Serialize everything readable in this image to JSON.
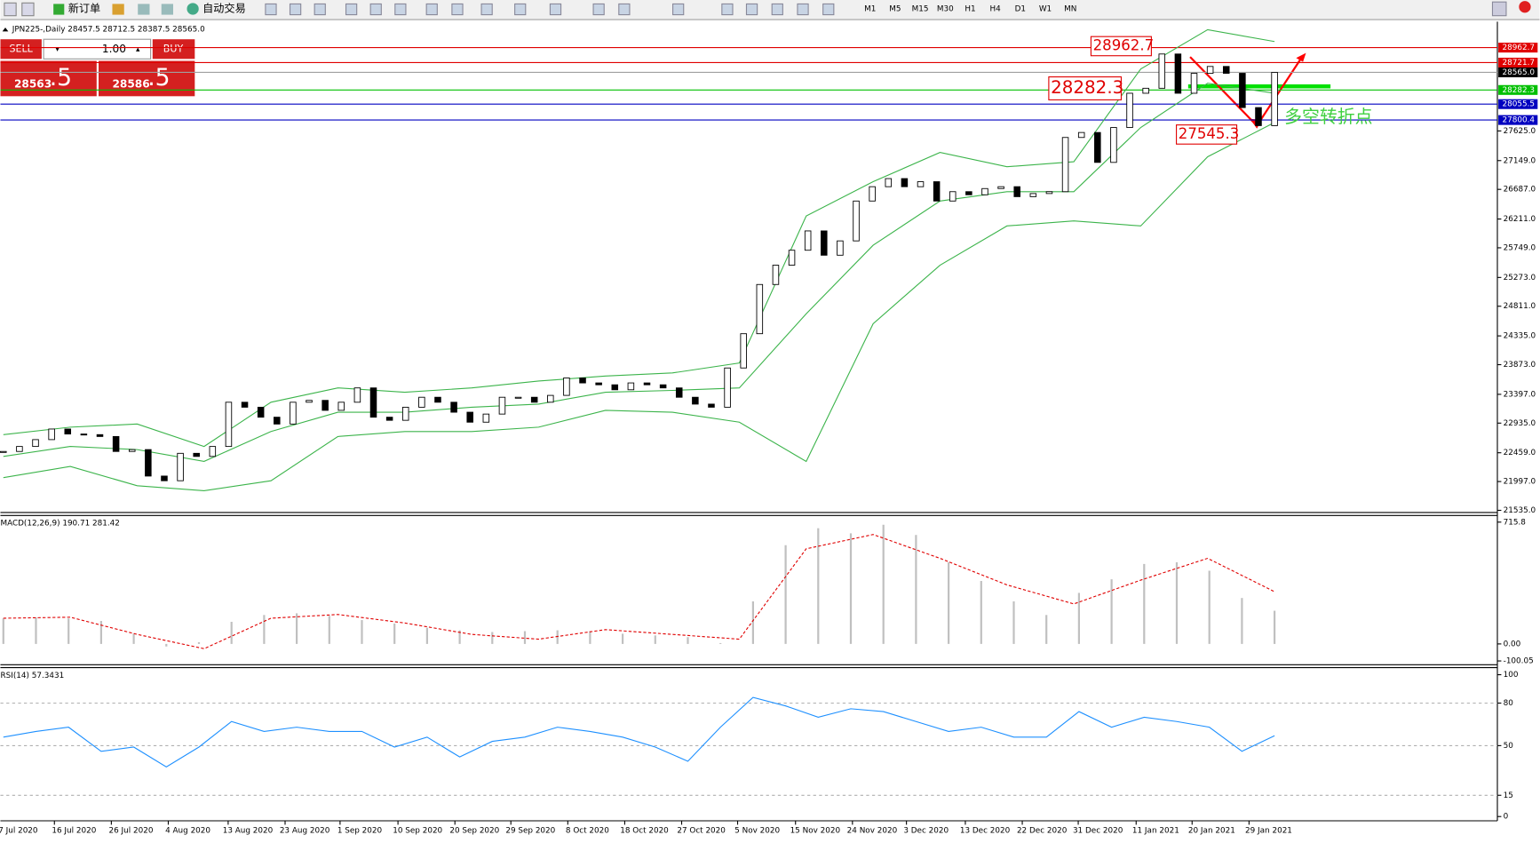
{
  "toolbar": {
    "buttons": [
      "新订单",
      "自动交易"
    ],
    "timeframes": [
      "M1",
      "M5",
      "M15",
      "M30",
      "H1",
      "H4",
      "D1",
      "W1",
      "MN"
    ]
  },
  "header": "JPN225-,Daily  28457.5 28712.5 28387.5 28565.0",
  "trade_panel": {
    "sell": "SELL",
    "buy": "BUY",
    "lot": "1.00",
    "bid": "28563",
    "bid_frac": ".5",
    "ask": "28586",
    "ask_frac": ".5"
  },
  "price_chart": {
    "ylim": [
      21500,
      29380
    ],
    "yticks": [
      {
        "value": 27625,
        "label": "27625.0"
      },
      {
        "value": 27149,
        "label": "27149.0"
      },
      {
        "value": 26687,
        "label": "26687.0"
      },
      {
        "value": 26211,
        "label": "26211.0"
      },
      {
        "value": 25749,
        "label": "25749.0"
      },
      {
        "value": 25273,
        "label": "25273.0"
      },
      {
        "value": 24811,
        "label": "24811.0"
      },
      {
        "value": 24335,
        "label": "24335.0"
      },
      {
        "value": 23873,
        "label": "23873.0"
      },
      {
        "value": 23397,
        "label": "23397.0"
      },
      {
        "value": 22935,
        "label": "22935.0"
      },
      {
        "value": 22459,
        "label": "22459.0"
      },
      {
        "value": 21997,
        "label": "21997.0"
      },
      {
        "value": 21535,
        "label": "21535.0"
      }
    ],
    "levels": [
      {
        "price": 28962.7,
        "color": "#e00000"
      },
      {
        "price": 28721.7,
        "color": "#e00000"
      },
      {
        "price": {
          "value": 28565,
          "label": "28565.0"
        },
        "color": "#000000"
      },
      {
        "price": 28282.3,
        "color": "#00c000"
      },
      {
        "price": 28055.5,
        "color": "#0000c0"
      },
      {
        "price": 27800.4,
        "color": "#0000c0"
      }
    ],
    "closes": [
      22480,
      22560,
      22670,
      22840,
      22760,
      22750,
      22720,
      22480,
      22510,
      22085,
      22010,
      22450,
      22400,
      22560,
      23270,
      23190,
      23030,
      22920,
      23270,
      23300,
      23140,
      23270,
      23500,
      23030,
      22980,
      23190,
      23350,
      23270,
      23110,
      22950,
      23080,
      23350,
      23350,
      23270,
      23380,
      23660,
      23580,
      23550,
      23470,
      23580,
      23550,
      23500,
      23350,
      23240,
      23190,
      23820,
      24370,
      25160,
      25470,
      25710,
      26020,
      25630,
      25860,
      26500,
      26730,
      26860,
      26730,
      26810,
      26500,
      26650,
      26600,
      26700,
      26730,
      26570,
      26620,
      26650,
      27520,
      27600,
      27120,
      27680,
      28230,
      28310,
      28860,
      28230,
      28550,
      28660,
      28550,
      28000,
      27710,
      28565
    ],
    "bands": {
      "upper": [
        22750,
        22870,
        22920,
        22560,
        23270,
        23500,
        23430,
        23500,
        23610,
        23690,
        23740,
        23900,
        26260,
        26810,
        27280,
        27050,
        27130,
        28620,
        29250,
        29060
      ],
      "middle": [
        22400,
        22560,
        22510,
        22320,
        22800,
        23110,
        23110,
        23190,
        23240,
        23430,
        23460,
        23500,
        24690,
        25790,
        26500,
        26650,
        26650,
        27680,
        28390,
        28230
      ],
      "lower": [
        22060,
        22240,
        21930,
        21850,
        22010,
        22720,
        22800,
        22800,
        22870,
        23140,
        23110,
        22950,
        22320,
        24530,
        25470,
        26100,
        26180,
        26100,
        27210,
        27760
      ]
    },
    "annotations": [
      "28962.7",
      "28282.3",
      "27545.3",
      "多空转折点"
    ]
  },
  "macd": {
    "title": "MACD(12,26,9) 190.71 281.42",
    "ylim": [
      -122,
      755
    ],
    "yticks": [
      715.8,
      {
        "value": 0,
        "label": "0.00"
      },
      -100.05
    ],
    "histogram": [
      150,
      155,
      150,
      135,
      60,
      -15,
      10,
      130,
      170,
      180,
      165,
      140,
      120,
      95,
      80,
      70,
      75,
      80,
      75,
      60,
      50,
      40,
      5,
      250,
      580,
      680,
      650,
      700,
      640,
      480,
      370,
      250,
      170,
      300,
      380,
      470,
      480,
      430,
      270,
      195
    ],
    "signal": [
      151,
      157,
      56,
      -28,
      151,
      173,
      123,
      56,
      28,
      84,
      56,
      28,
      559,
      643,
      503,
      347,
      235,
      375,
      503,
      307
    ]
  },
  "rsi": {
    "title": "RSI(14) 57.3431",
    "ylim": [
      -3,
      105
    ],
    "yticks": [
      100,
      80,
      50,
      15,
      0
    ],
    "levels": [
      80,
      50,
      15
    ],
    "values": [
      56,
      60,
      63,
      46,
      49,
      35,
      49,
      67,
      60,
      63,
      60,
      60,
      49,
      56,
      42,
      53,
      56,
      63,
      60,
      56,
      49,
      39,
      63,
      84,
      78,
      70,
      76,
      74,
      67,
      60,
      63,
      56,
      56,
      74,
      63,
      70,
      67,
      63,
      46,
      57
    ]
  },
  "dates": [
    "7 Jul 2020",
    "16 Jul 2020",
    "26 Jul 2020",
    "4 Aug 2020",
    "13 Aug 2020",
    "23 Aug 2020",
    "1 Sep 2020",
    "10 Sep 2020",
    "20 Sep 2020",
    "29 Sep 2020",
    "8 Oct 2020",
    "18 Oct 2020",
    "27 Oct 2020",
    "5 Nov 2020",
    "15 Nov 2020",
    "24 Nov 2020",
    "3 Dec 2020",
    "13 Dec 2020",
    "22 Dec 2020",
    "31 Dec 2020",
    "11 Jan 2021",
    "20 Jan 2021",
    "29 Jan 2021"
  ]
}
